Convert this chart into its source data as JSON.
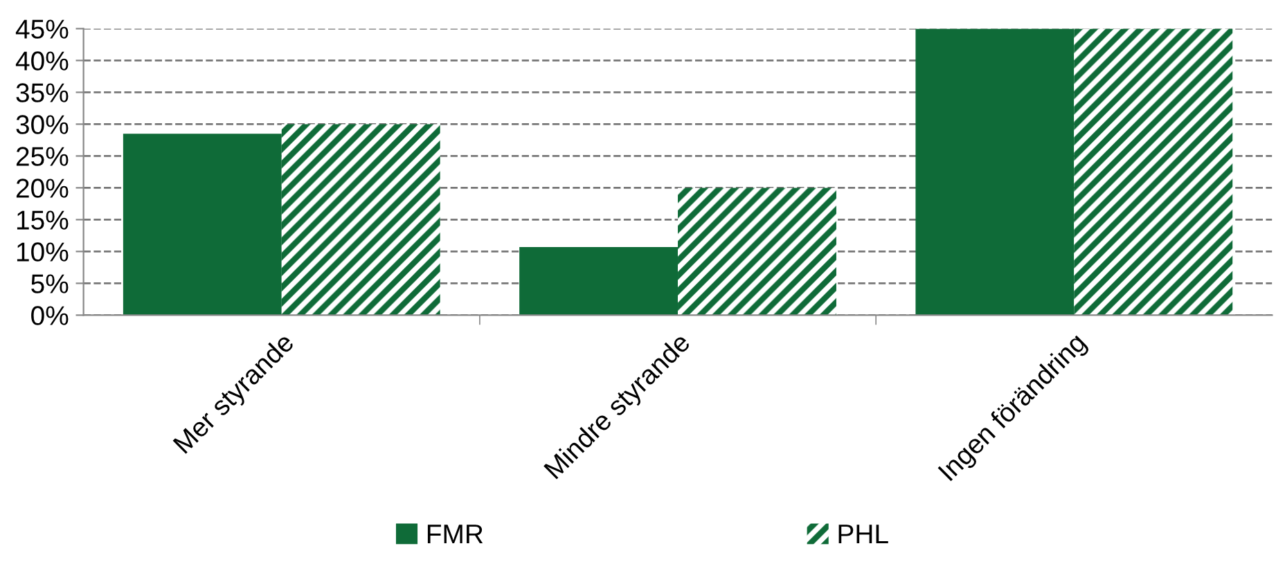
{
  "chart_data": {
    "type": "bar",
    "categories": [
      "Mer styrande",
      "Mindre styrande",
      "Ingen förändring"
    ],
    "series": [
      {
        "name": "FMR",
        "color": "#0f6b38",
        "values": [
          28.5,
          10.7,
          45
        ]
      },
      {
        "name": "PHL",
        "color": "#0f6b38",
        "values": [
          30,
          20,
          45
        ]
      }
    ],
    "ylim": [
      0,
      45
    ],
    "yticks": [
      {
        "value": 0,
        "label": "0%"
      },
      {
        "value": 5,
        "label": "5%"
      },
      {
        "value": 10,
        "label": "10%"
      },
      {
        "value": 15,
        "label": "15%"
      },
      {
        "value": 20,
        "label": "20%"
      },
      {
        "value": 25,
        "label": "25%"
      },
      {
        "value": 30,
        "label": "30%"
      },
      {
        "value": 35,
        "label": "35%"
      },
      {
        "value": 40,
        "label": "40%"
      },
      {
        "value": 45,
        "label": "45%"
      }
    ],
    "grid": "y",
    "line_style": "dashed",
    "legend": "bottom"
  }
}
